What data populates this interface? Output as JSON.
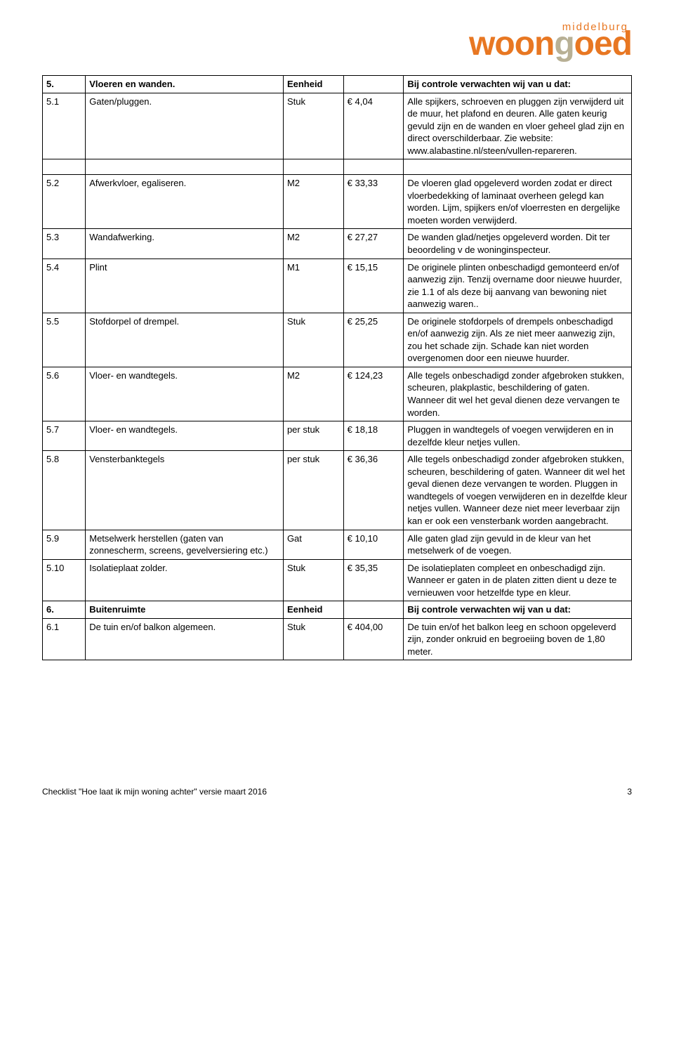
{
  "logo": {
    "small": "middelburg",
    "main_part1": "woon",
    "main_part2": "g",
    "main_part3": "oed"
  },
  "rows": [
    {
      "num": "5.",
      "item": "Vloeren en wanden.",
      "unit": "Eenheid",
      "price": "",
      "desc": "Bij controle verwachten wij van u dat:",
      "bold": true
    },
    {
      "num": "5.1",
      "item": "Gaten/pluggen.",
      "unit": "Stuk",
      "price": "€ 4,04",
      "desc": "Alle spijkers, schroeven en pluggen zijn verwijderd uit de muur, het plafond en deuren. Alle gaten keurig gevuld zijn en de wanden en vloer geheel glad zijn en direct overschilderbaar. Zie website: www.alabastine.nl/steen/vullen-repareren."
    },
    {
      "gap": true
    },
    {
      "num": "5.2",
      "item": "Afwerkvloer, egaliseren.",
      "unit": "M2",
      "price": "€ 33,33",
      "desc": "De vloeren glad opgeleverd worden zodat er direct vloerbedekking of laminaat overheen gelegd kan worden. Lijm, spijkers en/of vloerresten en dergelijke moeten worden verwijderd."
    },
    {
      "num": "5.3",
      "item": "Wandafwerking.",
      "unit": "M2",
      "price": "€ 27,27",
      "desc": "De wanden glad/netjes opgeleverd worden. Dit ter beoordeling v de woninginspecteur."
    },
    {
      "num": "5.4",
      "item": "Plint",
      "unit": "M1",
      "price": "€ 15,15",
      "desc": "De originele plinten onbeschadigd gemonteerd en/of aanwezig zijn. Tenzij overname door nieuwe huurder, zie 1.1 of als deze bij aanvang van bewoning niet aanwezig waren.."
    },
    {
      "num": "5.5",
      "item": "Stofdorpel of drempel.",
      "unit": "Stuk",
      "price": "€ 25,25",
      "desc": "De originele stofdorpels of drempels onbeschadigd en/of aanwezig zijn. Als ze niet meer aanwezig zijn, zou het schade zijn. Schade kan niet worden overgenomen door een nieuwe huurder."
    },
    {
      "num": "5.6",
      "item": "Vloer- en wandtegels.",
      "unit": "M2",
      "price": "€ 124,23",
      "desc": "Alle tegels onbeschadigd zonder afgebroken stukken, scheuren, plakplastic, beschildering of gaten. Wanneer dit wel het geval dienen deze vervangen te worden."
    },
    {
      "num": "5.7",
      "item": "Vloer- en wandtegels.",
      "unit": "per stuk",
      "price": "€ 18,18",
      "desc": "Pluggen in wandtegels of voegen verwijderen en in dezelfde kleur netjes vullen."
    },
    {
      "num": "5.8",
      "item": "Vensterbanktegels",
      "unit": "per stuk",
      "price": "€ 36,36",
      "desc": "Alle tegels onbeschadigd zonder afgebroken stukken, scheuren, beschildering of gaten. Wanneer dit wel het geval dienen deze vervangen te worden. Pluggen in wandtegels of voegen verwijderen en in dezelfde kleur netjes vullen. Wanneer deze niet meer leverbaar zijn kan er ook een vensterbank worden aangebracht."
    },
    {
      "num": "5.9",
      "item": "Metselwerk herstellen (gaten van zonnescherm, screens, gevelversiering etc.)",
      "unit": "Gat",
      "price": "€ 10,10",
      "desc": "Alle gaten glad zijn gevuld in de kleur van het metselwerk of de voegen."
    },
    {
      "num": "5.10",
      "item": "Isolatieplaat zolder.",
      "unit": "Stuk",
      "price": "€ 35,35",
      "desc": "De isolatieplaten compleet en onbeschadigd zijn. Wanneer er gaten in de platen zitten dient u deze te vernieuwen voor hetzelfde type en kleur."
    },
    {
      "num": "6.",
      "item": "Buitenruimte",
      "unit": "Eenheid",
      "price": "",
      "desc": "Bij controle verwachten wij van u dat:",
      "bold": true
    },
    {
      "num": "6.1",
      "item": "De tuin en/of balkon algemeen.",
      "unit": "Stuk",
      "price": "€ 404,00",
      "desc": "De tuin en/of het balkon leeg en schoon opgeleverd zijn, zonder onkruid en begroeiing boven de 1,80 meter."
    }
  ],
  "footer": {
    "text": "Checklist \"Hoe laat ik mijn woning achter\" versie maart 2016",
    "page": "3"
  }
}
